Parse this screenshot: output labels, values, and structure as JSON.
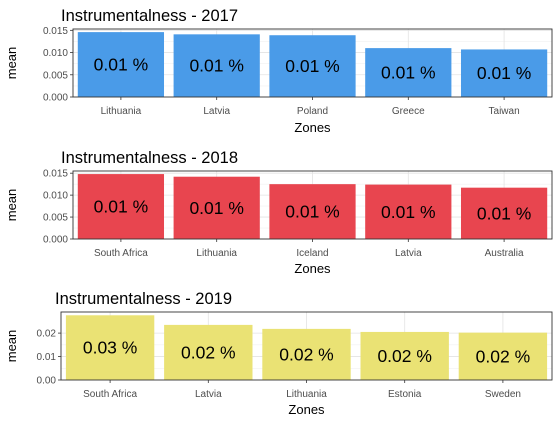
{
  "chart_data": [
    {
      "type": "bar",
      "title": "Instrumentalness - 2017",
      "xlabel": "Zones",
      "ylabel": "mean",
      "color": "#4A9BE8",
      "categories": [
        "Lithuania",
        "Latvia",
        "Poland",
        "Greece",
        "Taiwan"
      ],
      "values": [
        0.0146,
        0.0141,
        0.0139,
        0.011,
        0.0107
      ],
      "data_labels": [
        "0.01 %",
        "0.01 %",
        "0.01 %",
        "0.01 %",
        "0.01 %"
      ],
      "ylim": [
        0,
        0.0153
      ],
      "yticks": [
        0.0,
        0.005,
        0.01,
        0.015
      ],
      "ytick_labels": [
        "0.000",
        "0.005",
        "0.010",
        "0.015"
      ],
      "grid": true
    },
    {
      "type": "bar",
      "title": "Instrumentalness - 2018",
      "xlabel": "Zones",
      "ylabel": "mean",
      "color": "#E8454F",
      "categories": [
        "South Africa",
        "Lithuania",
        "Iceland",
        "Latvia",
        "Australia"
      ],
      "values": [
        0.0148,
        0.0142,
        0.0125,
        0.0124,
        0.0117
      ],
      "data_labels": [
        "0.01 %",
        "0.01 %",
        "0.01 %",
        "0.01 %",
        "0.01 %"
      ],
      "ylim": [
        0,
        0.0155
      ],
      "yticks": [
        0.0,
        0.005,
        0.01,
        0.015
      ],
      "ytick_labels": [
        "0.000",
        "0.005",
        "0.010",
        "0.015"
      ],
      "grid": true
    },
    {
      "type": "bar",
      "title": "Instrumentalness - 2019",
      "xlabel": "Zones",
      "ylabel": "mean",
      "color": "#EAE274",
      "categories": [
        "South Africa",
        "Latvia",
        "Lithuania",
        "Estonia",
        "Sweden"
      ],
      "values": [
        0.0276,
        0.0235,
        0.0218,
        0.0205,
        0.0202
      ],
      "data_labels": [
        "0.03 %",
        "0.02 %",
        "0.02 %",
        "0.02 %",
        "0.02 %"
      ],
      "ylim": [
        0,
        0.029
      ],
      "yticks": [
        0.0,
        0.01,
        0.02
      ],
      "ytick_labels": [
        "0.00",
        "0.01",
        "0.02"
      ],
      "grid": true
    }
  ]
}
